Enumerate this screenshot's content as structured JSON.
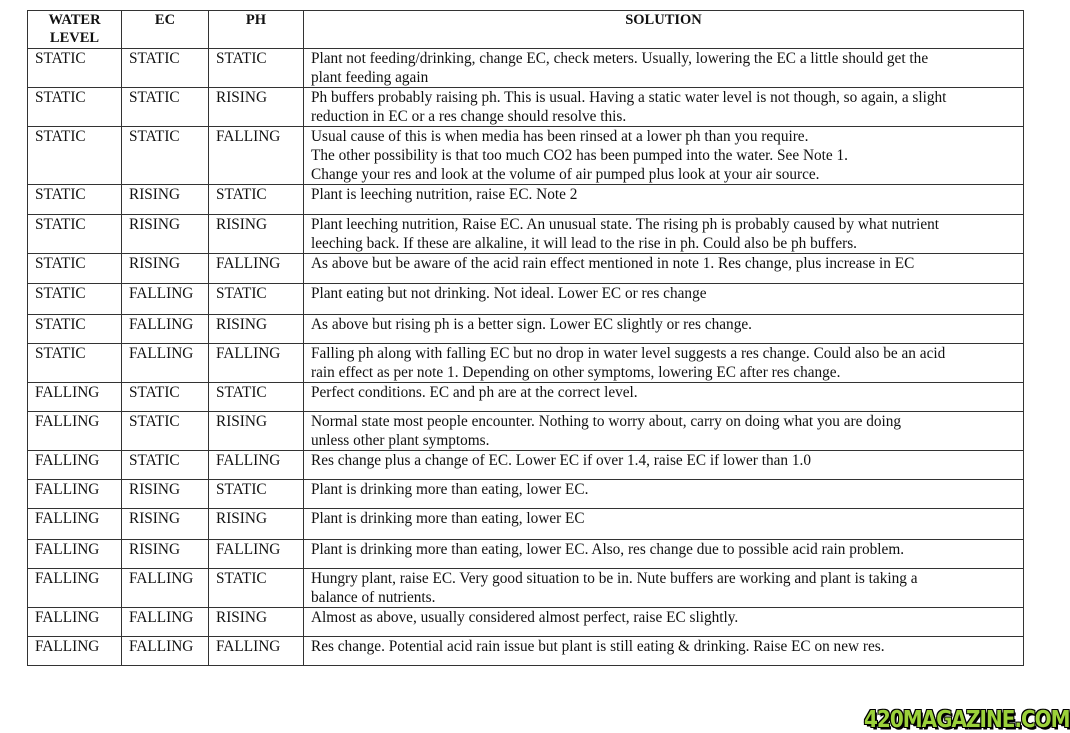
{
  "headers": [
    "WATER LEVEL",
    "EC",
    "PH",
    "SOLUTION"
  ],
  "rows": [
    {
      "water": "STATIC",
      "ec": "STATIC",
      "ph": "STATIC",
      "solution": [
        "Plant not feeding/drinking, change EC, check meters. Usually, lowering the EC a little should get the",
        "plant feeding again"
      ]
    },
    {
      "water": "STATIC",
      "ec": "STATIC",
      "ph": "RISING",
      "solution": [
        "Ph buffers probably raising ph. This is usual. Having a static water level is not though, so again, a slight",
        "reduction in EC or a res change should resolve this."
      ]
    },
    {
      "water": "STATIC",
      "ec": "STATIC",
      "ph": "FALLING",
      "solution": [
        "Usual cause of this is when media has been rinsed at a lower ph than you require.",
        "The other possibility is that too much CO2 has been pumped into the water. See Note 1.",
        "Change your res and look at the volume of air pumped plus look at your air source."
      ]
    },
    {
      "water": "STATIC",
      "ec": "RISING",
      "ph": "STATIC",
      "solution": [
        "Plant is leeching nutrition, raise EC. Note 2"
      ]
    },
    {
      "water": "STATIC",
      "ec": "RISING",
      "ph": "RISING",
      "solution": [
        "Plant leeching nutrition, Raise EC. An unusual state. The rising ph is probably caused by what nutrient",
        "leeching back. If these are alkaline, it will lead to the rise in ph. Could also be ph buffers."
      ]
    },
    {
      "water": "STATIC",
      "ec": "RISING",
      "ph": "FALLING",
      "solution": [
        "As above but be aware of the acid rain effect mentioned in note 1. Res change, plus increase in EC"
      ]
    },
    {
      "water": "STATIC",
      "ec": "FALLING",
      "ph": "STATIC",
      "solution": [
        "Plant eating but not drinking. Not ideal. Lower EC or res change"
      ]
    },
    {
      "water": "STATIC",
      "ec": "FALLING",
      "ph": "RISING",
      "solution": [
        "As above but rising ph is a better sign. Lower EC slightly or res change."
      ]
    },
    {
      "water": "STATIC",
      "ec": "FALLING",
      "ph": "FALLING",
      "solution": [
        "Falling ph along with falling EC but no drop in water level suggests a res change. Could also be an acid",
        "rain effect as per note 1. Depending on other symptoms, lowering EC after res change."
      ]
    },
    {
      "water": "FALLING",
      "ec": "STATIC",
      "ph": "STATIC",
      "solution": [
        "Perfect conditions. EC and ph are at the correct level."
      ]
    },
    {
      "water": "FALLING",
      "ec": "STATIC",
      "ph": "RISING",
      "solution": [
        "Normal state most people encounter. Nothing to worry about, carry on doing what you are doing",
        "unless other plant symptoms."
      ]
    },
    {
      "water": "FALLING",
      "ec": "STATIC",
      "ph": "FALLING",
      "solution": [
        "Res change plus a change of EC. Lower EC if over 1.4, raise EC if lower than 1.0"
      ]
    },
    {
      "water": "FALLING",
      "ec": "RISING",
      "ph": "STATIC",
      "solution": [
        "Plant is drinking more than eating, lower EC."
      ]
    },
    {
      "water": "FALLING",
      "ec": "RISING",
      "ph": "RISING",
      "solution": [
        "Plant is drinking more than eating, lower EC"
      ]
    },
    {
      "water": "FALLING",
      "ec": "RISING",
      "ph": "FALLING",
      "solution": [
        "Plant is drinking more than eating, lower EC. Also, res change due to possible acid rain problem."
      ]
    },
    {
      "water": "FALLING",
      "ec": "FALLING",
      "ph": "STATIC",
      "solution": [
        "Hungry plant, raise EC. Very good situation to be in. Nute buffers are working and plant is taking a",
        "balance of nutrients."
      ]
    },
    {
      "water": "FALLING",
      "ec": "FALLING",
      "ph": "RISING",
      "solution": [
        "Almost as above, usually considered almost perfect, raise EC slightly."
      ]
    },
    {
      "water": "FALLING",
      "ec": "FALLING",
      "ph": "FALLING",
      "solution": [
        "Res change. Potential acid rain issue but plant is still eating & drinking. Raise EC on new res."
      ]
    }
  ],
  "watermark": "420MAGAZINE.COM"
}
